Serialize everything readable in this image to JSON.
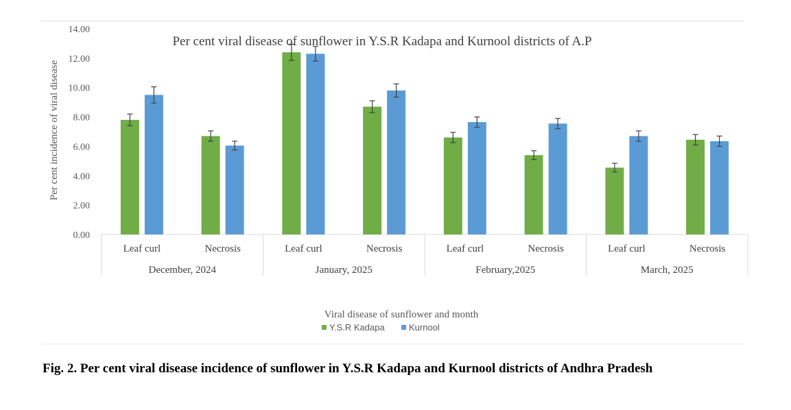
{
  "caption": "Fig. 2. Per cent viral disease incidence of sunflower in Y.S.R Kadapa and Kurnool districts of Andhra Pradesh",
  "chart_data": {
    "type": "bar",
    "title": "Per cent viral disease of sunflower in Y.S.R Kadapa and Kurnool districts of A.P",
    "xlabel": "Viral disease of sunflower and month",
    "ylabel": "Per cent incidence of viral disease",
    "ylim": [
      0,
      14
    ],
    "yticks": [
      "0.00",
      "2.00",
      "4.00",
      "6.00",
      "8.00",
      "10.00",
      "12.00",
      "14.00"
    ],
    "grid": false,
    "legend_position": "bottom",
    "groups": [
      "December, 2024",
      "January, 2025",
      "February,2025",
      "March, 2025"
    ],
    "categories": [
      "Leaf curl",
      "Necrosis",
      "Leaf curl",
      "Necrosis",
      "Leaf curl",
      "Necrosis",
      "Leaf curl",
      "Necrosis"
    ],
    "series": [
      {
        "name": "Y.S.R Kadapa",
        "color": "#70ad47",
        "values": [
          7.8,
          6.7,
          12.4,
          8.7,
          6.6,
          5.4,
          4.55,
          6.45
        ],
        "errors": [
          0.4,
          0.35,
          0.55,
          0.4,
          0.35,
          0.3,
          0.3,
          0.35
        ]
      },
      {
        "name": "Kurnool",
        "color": "#5b9bd5",
        "values": [
          9.5,
          6.05,
          12.3,
          9.8,
          7.65,
          7.55,
          6.7,
          6.35
        ],
        "errors": [
          0.55,
          0.3,
          0.5,
          0.45,
          0.35,
          0.35,
          0.35,
          0.35
        ]
      }
    ]
  }
}
